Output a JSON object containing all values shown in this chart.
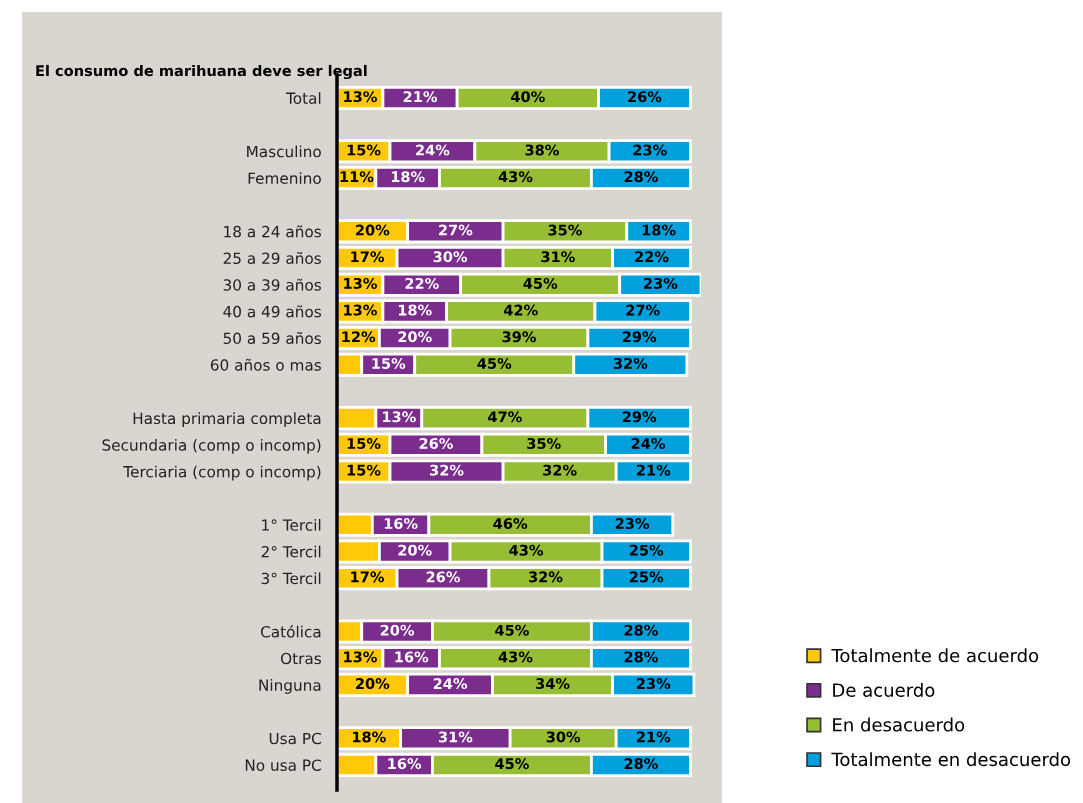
{
  "chart_data": {
    "type": "bar",
    "orientation": "horizontal",
    "stacked": true,
    "title": "El consumo de marihuana deve ser legal",
    "categories": [
      "Total",
      null,
      "Masculino",
      "Femenino",
      null,
      "18 a 24 años",
      "25 a 29 años",
      "30 a 39 años",
      "40 a 49 años",
      "50 a 59 años",
      "60 años o mas",
      null,
      "Hasta primaria completa",
      "Secundaria (comp o incomp)",
      "Terciaria (comp o incomp)",
      null,
      "1° Tercil",
      "2° Tercil",
      "3° Tercil",
      null,
      "Católica",
      "Otras",
      "Ninguna",
      null,
      "Usa PC",
      "No usa PC"
    ],
    "series": [
      {
        "name": "Totalmente de acuerdo",
        "color": "#ffc90a",
        "values": [
          13,
          null,
          15,
          11,
          null,
          20,
          17,
          13,
          13,
          12,
          7,
          null,
          11,
          15,
          15,
          null,
          10,
          12,
          17,
          null,
          7,
          13,
          20,
          null,
          18,
          11
        ],
        "value_labels": [
          "13%",
          null,
          "15%",
          "11%",
          null,
          "20%",
          "17%",
          "13%",
          "13%",
          "12%",
          null,
          null,
          null,
          "15%",
          "15%",
          null,
          null,
          null,
          "17%",
          null,
          null,
          "13%",
          "20%",
          null,
          "18%",
          null
        ]
      },
      {
        "name": "De acuerdo",
        "color": "#7b2d8e",
        "values": [
          21,
          null,
          24,
          18,
          null,
          27,
          30,
          22,
          18,
          20,
          15,
          null,
          13,
          26,
          32,
          null,
          16,
          20,
          26,
          null,
          20,
          16,
          24,
          null,
          31,
          16
        ],
        "value_labels": [
          "21%",
          null,
          "24%",
          "18%",
          null,
          "27%",
          "30%",
          "22%",
          "18%",
          "20%",
          "15%",
          null,
          "13%",
          "26%",
          "32%",
          null,
          "16%",
          "20%",
          "26%",
          null,
          "20%",
          "16%",
          "24%",
          null,
          "31%",
          "16%"
        ]
      },
      {
        "name": "En desacuerdo",
        "color": "#97bd34",
        "values": [
          40,
          null,
          38,
          43,
          null,
          35,
          31,
          45,
          42,
          39,
          45,
          null,
          47,
          35,
          32,
          null,
          46,
          43,
          32,
          null,
          45,
          43,
          34,
          null,
          30,
          45
        ],
        "value_labels": [
          "40%",
          null,
          "38%",
          "43%",
          null,
          "35%",
          "31%",
          "45%",
          "42%",
          "39%",
          "45%",
          null,
          "47%",
          "35%",
          "32%",
          null,
          "46%",
          "43%",
          "32%",
          null,
          "45%",
          "43%",
          "34%",
          null,
          "30%",
          "45%"
        ]
      },
      {
        "name": "Totalmente en desacuerdo",
        "color": "#00a0dc",
        "values": [
          26,
          null,
          23,
          28,
          null,
          18,
          22,
          23,
          27,
          29,
          32,
          null,
          29,
          24,
          21,
          null,
          23,
          25,
          25,
          null,
          28,
          28,
          23,
          null,
          21,
          28
        ],
        "value_labels": [
          "26%",
          null,
          "23%",
          "28%",
          null,
          "18%",
          "22%",
          "23%",
          "27%",
          "29%",
          "32%",
          null,
          "29%",
          "24%",
          "21%",
          null,
          "23%",
          "25%",
          "25%",
          null,
          "28%",
          "28%",
          "23%",
          null,
          "21%",
          "28%"
        ]
      }
    ],
    "legend": "bottom right",
    "tick_labels": "y"
  }
}
